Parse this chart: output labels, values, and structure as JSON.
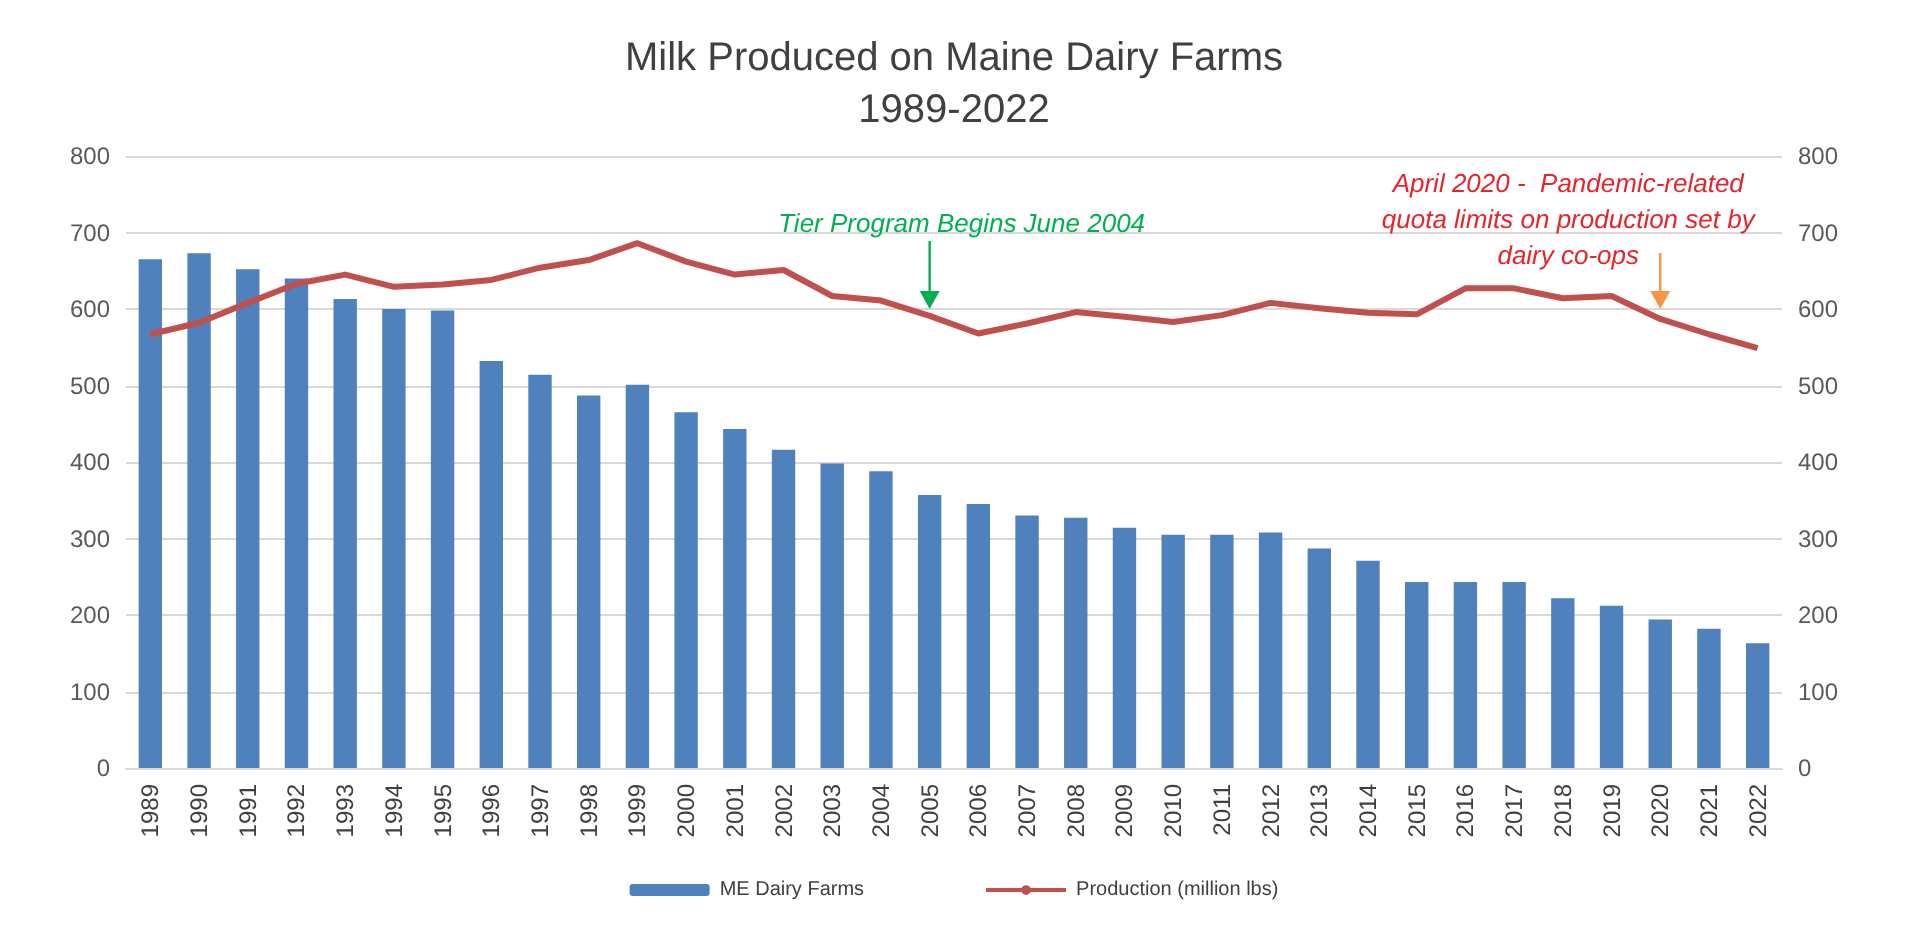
{
  "chart_data": {
    "type": "bar",
    "title": "Milk Produced on Maine Dairy Farms",
    "subtitle": "1989-2022",
    "categories": [
      "1989",
      "1990",
      "1991",
      "1992",
      "1993",
      "1994",
      "1995",
      "1996",
      "1997",
      "1998",
      "1999",
      "2000",
      "2001",
      "2002",
      "2003",
      "2004",
      "2005",
      "2006",
      "2007",
      "2008",
      "2009",
      "2010",
      "2011",
      "2012",
      "2013",
      "2014",
      "2015",
      "2016",
      "2017",
      "2018",
      "2019",
      "2020",
      "2021",
      "2022"
    ],
    "series": [
      {
        "name": "ME Dairy Farms",
        "color": "#4f81bd",
        "values": [
          665,
          673,
          652,
          640,
          613,
          600,
          598,
          532,
          514,
          487,
          501,
          465,
          443,
          416,
          398,
          388,
          357,
          345,
          330,
          327,
          314,
          305,
          305,
          308,
          287,
          271,
          243,
          243,
          243,
          222,
          212,
          194,
          182,
          163
        ]
      },
      {
        "name": "Production (million lbs)",
        "type": "line",
        "axis": "y2",
        "color": "#c0504d",
        "values": [
          567,
          582,
          608,
          633,
          645,
          629,
          632,
          638,
          654,
          664,
          686,
          662,
          645,
          651,
          617,
          611,
          591,
          568,
          581,
          596,
          590,
          583,
          592,
          608,
          601,
          595,
          593,
          627,
          627,
          614,
          617,
          587,
          567,
          549
        ]
      }
    ],
    "ylim": [
      0,
      800
    ],
    "yticks": [
      0,
      100,
      200,
      300,
      400,
      500,
      600,
      700,
      800
    ],
    "y2lim": [
      0,
      800
    ],
    "y2ticks": [
      0,
      100,
      200,
      300,
      400,
      500,
      600,
      700,
      800
    ],
    "grid": "y",
    "legend": "bottom",
    "marker": "none",
    "annotations": [
      {
        "text": "Tier Program Begins June 2004",
        "x": "2005",
        "y": 600
      },
      {
        "text": "April 2020 -  Pandemic-related\nquota limits on production set by\ndairy co-ops",
        "x": "2020",
        "y": 600
      }
    ]
  }
}
